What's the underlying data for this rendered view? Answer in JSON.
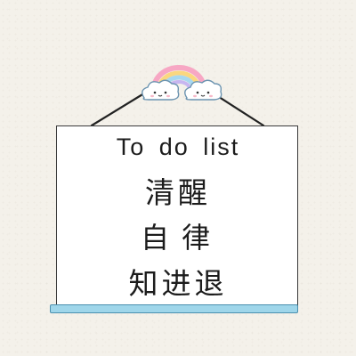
{
  "board": {
    "title": "To do list",
    "line1": "清醒",
    "line2": "自律",
    "line3": "知进退"
  },
  "icons": {
    "rainbow": "rainbow-icon",
    "cloud_left": "cloud-icon",
    "cloud_right": "cloud-icon"
  },
  "colors": {
    "background": "#f4f1ea",
    "board": "#ffffff",
    "bar": "#9fd6ea",
    "rainbow": [
      "#f7a7c4",
      "#fbd77f",
      "#a8d8f0",
      "#c7b6f0"
    ]
  }
}
